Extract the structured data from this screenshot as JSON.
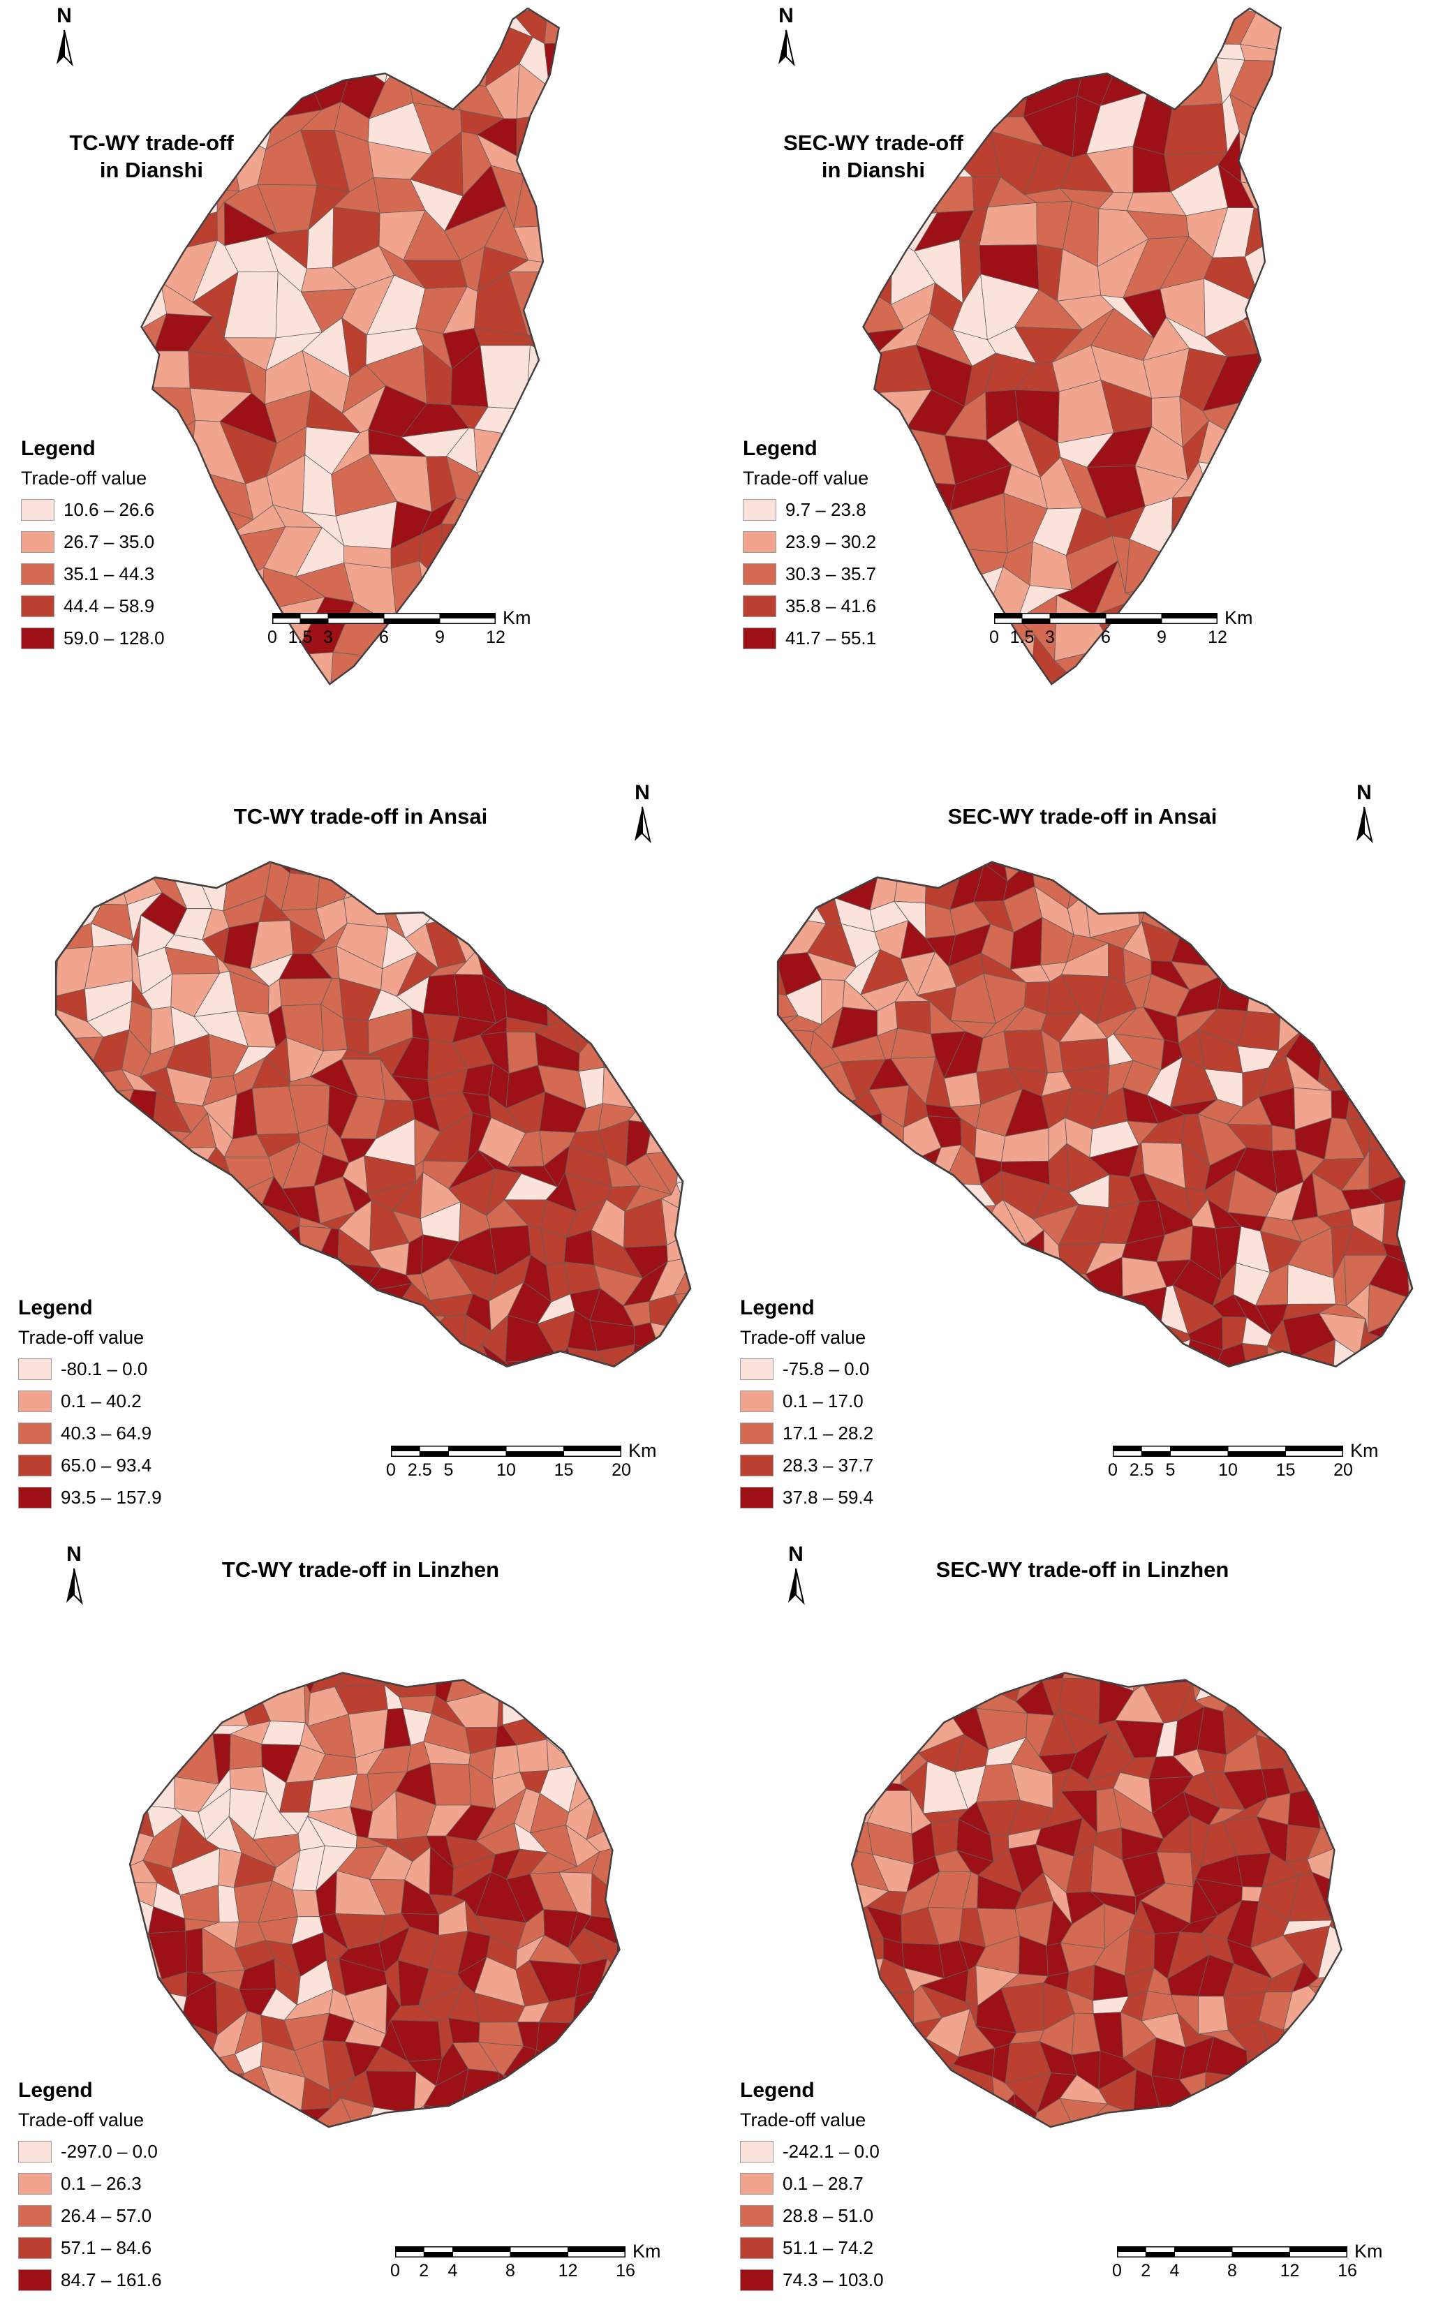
{
  "north_label": "N",
  "legend_title": "Legend",
  "legend_subtitle": "Trade-off value",
  "palette": [
    "#fbe3dc",
    "#f1a48e",
    "#d56a52",
    "#bb4030",
    "#9c1016"
  ],
  "panels": [
    {
      "id": "tc-wy-dianshi",
      "title": "TC-WY trade-off in Dianshi",
      "classes": [
        "10.6 – 26.6",
        "26.7 – 35.0",
        "35.1 – 44.3",
        "44.4 – 58.9",
        "59.0 – 128.0"
      ],
      "scalebar": {
        "unit": "Km",
        "ticks": [
          "0",
          "1.5",
          "3",
          "6",
          "9",
          "12"
        ]
      }
    },
    {
      "id": "sec-wy-dianshi",
      "title": "SEC-WY trade-off in Dianshi",
      "classes": [
        "9.7 – 23.8",
        "23.9 – 30.2",
        "30.3 – 35.7",
        "35.8 – 41.6",
        "41.7 – 55.1"
      ],
      "scalebar": {
        "unit": "Km",
        "ticks": [
          "0",
          "1.5",
          "3",
          "6",
          "9",
          "12"
        ]
      }
    },
    {
      "id": "tc-wy-ansai",
      "title": "TC-WY trade-off in Ansai",
      "classes": [
        "-80.1 – 0.0",
        "0.1 – 40.2",
        "40.3 – 64.9",
        "65.0 – 93.4",
        "93.5 – 157.9"
      ],
      "scalebar": {
        "unit": "Km",
        "ticks": [
          "0",
          "2.5",
          "5",
          "10",
          "15",
          "20"
        ]
      }
    },
    {
      "id": "sec-wy-ansai",
      "title": "SEC-WY trade-off in Ansai",
      "classes": [
        "-75.8 – 0.0",
        "0.1 – 17.0",
        "17.1 – 28.2",
        "28.3 – 37.7",
        "37.8 – 59.4"
      ],
      "scalebar": {
        "unit": "Km",
        "ticks": [
          "0",
          "2.5",
          "5",
          "10",
          "15",
          "20"
        ]
      }
    },
    {
      "id": "tc-wy-linzhen",
      "title": "TC-WY trade-off in Linzhen",
      "classes": [
        "-297.0 – 0.0",
        "0.1 – 26.3",
        "26.4 – 57.0",
        "57.1 – 84.6",
        "84.7 – 161.6"
      ],
      "scalebar": {
        "unit": "Km",
        "ticks": [
          "0",
          "2",
          "4",
          "8",
          "12",
          "16"
        ]
      }
    },
    {
      "id": "sec-wy-linzhen",
      "title": "SEC-WY trade-off in Linzhen",
      "classes": [
        "-242.1 – 0.0",
        "0.1 – 28.7",
        "28.8 – 51.0",
        "51.1 – 74.2",
        "74.3 – 103.0"
      ],
      "scalebar": {
        "unit": "Km",
        "ticks": [
          "0",
          "2",
          "4",
          "8",
          "12",
          "16"
        ]
      }
    }
  ]
}
